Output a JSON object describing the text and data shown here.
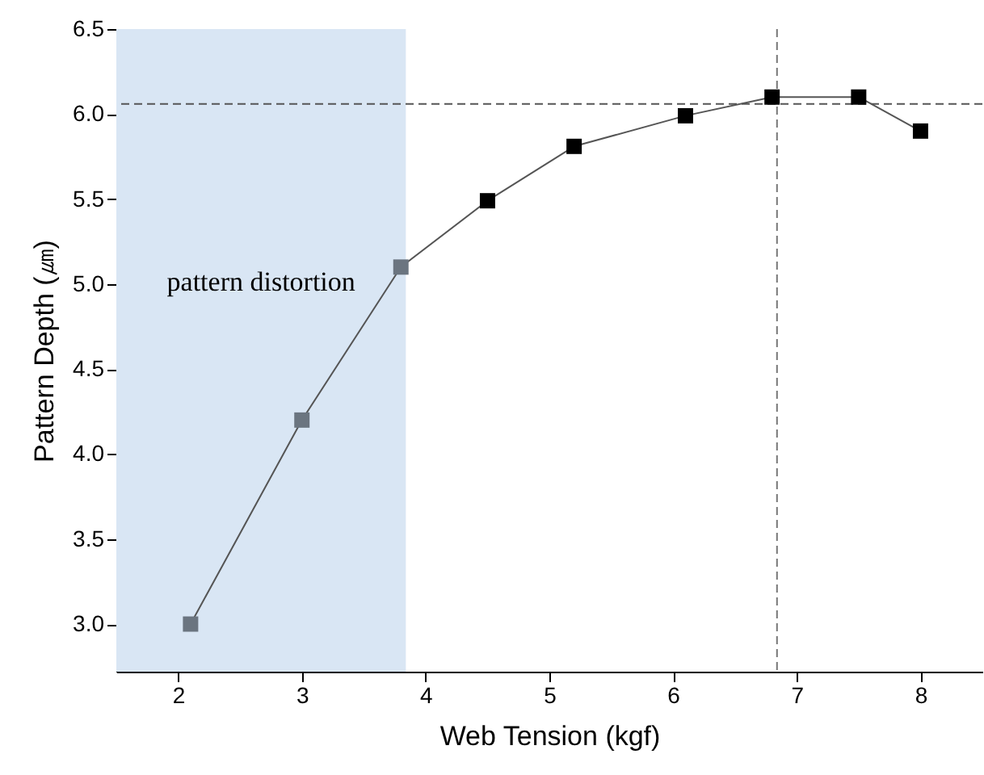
{
  "chart_data": {
    "type": "line",
    "xlabel": "Web Tension (kgf)",
    "ylabel": "Pattern Depth (㎛)",
    "x": [
      2.1,
      3.0,
      3.8,
      4.5,
      5.2,
      6.1,
      6.8,
      7.5,
      8.0
    ],
    "series": [
      {
        "color": "#555555",
        "values": [
          3.0,
          4.2,
          5.1,
          5.49,
          5.81,
          5.99,
          6.1,
          6.1,
          5.9
        ],
        "colors": [
          "#6b7580",
          "#6b7580",
          "#6b7580",
          "#000000",
          "#000000",
          "#000000",
          "#000000",
          "#000000",
          "#000000"
        ]
      }
    ],
    "marker": "square",
    "xlim": [
      1.5,
      8.5
    ],
    "ylim": [
      2.72,
      6.5
    ],
    "xticks": [
      2,
      3,
      4,
      5,
      6,
      7,
      8
    ],
    "yticks": [
      {
        "value": 3,
        "label": "3.0"
      },
      3.5,
      {
        "value": 4,
        "label": "4.0"
      },
      4.5,
      {
        "value": 5,
        "label": "5.0"
      },
      5.5,
      {
        "value": 6,
        "label": "6.0"
      },
      6.5
    ],
    "bands": [
      {
        "axis": "x",
        "from": 1.5,
        "to": 3.84,
        "label": "pattern distortion",
        "color": "#d9e6f4"
      }
    ],
    "ref_lines": [
      {
        "axis": "y",
        "value": 6.06,
        "line_style": "dashed",
        "color": "#555555"
      },
      {
        "axis": "x",
        "value": 6.84,
        "line_style": "dashed",
        "color": "#777777"
      }
    ]
  }
}
